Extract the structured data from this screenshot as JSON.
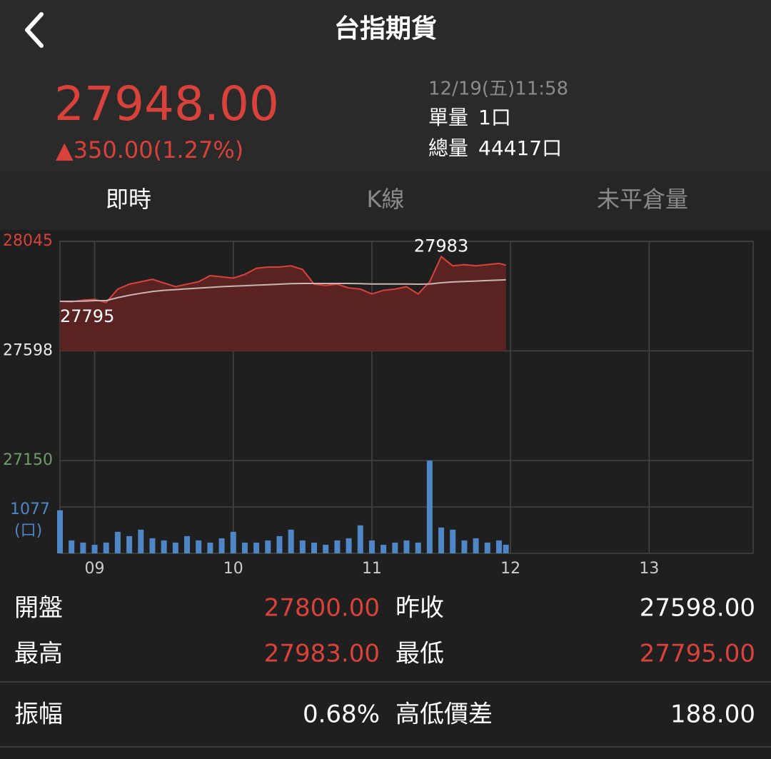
{
  "header": {
    "title": "台指期貨"
  },
  "quote": {
    "price": "27948.00",
    "change": "▲350.00(1.27%)",
    "time": "12/19(五)11:58",
    "volume_label": "單量",
    "volume": "1口",
    "total_label": "總量",
    "total": "44417口"
  },
  "tabs": [
    "即時",
    "K線",
    "未平倉量"
  ],
  "chart_data": [
    {
      "type": "area",
      "x": [
        525,
        530,
        535,
        540,
        545,
        550,
        555,
        560,
        565,
        570,
        575,
        580,
        585,
        590,
        595,
        600,
        605,
        610,
        615,
        620,
        625,
        630,
        635,
        640,
        645,
        650,
        655,
        660,
        665,
        670,
        675,
        680,
        685,
        690,
        695,
        700,
        705,
        710,
        715,
        718
      ],
      "series": [
        {
          "color": "#d9413b",
          "values": [
            27800,
            27798,
            27805,
            27808,
            27795,
            27850,
            27870,
            27880,
            27890,
            27875,
            27860,
            27870,
            27880,
            27905,
            27900,
            27895,
            27910,
            27935,
            27940,
            27940,
            27945,
            27930,
            27870,
            27865,
            27870,
            27855,
            27850,
            27830,
            27845,
            27850,
            27860,
            27830,
            27880,
            27983,
            27945,
            27950,
            27945,
            27950,
            27955,
            27948
          ]
        },
        {
          "color": "#c9b4b4",
          "values": [
            27800,
            27800,
            27801,
            27803,
            27803,
            27815,
            27825,
            27833,
            27840,
            27845,
            27848,
            27851,
            27854,
            27857,
            27860,
            27862,
            27864,
            27866,
            27868,
            27870,
            27872,
            27873,
            27873,
            27873,
            27873,
            27873,
            27872,
            27871,
            27871,
            27871,
            27871,
            27870,
            27871,
            27876,
            27879,
            27881,
            27883,
            27885,
            27887,
            27888
          ]
        }
      ],
      "high": 27983,
      "low": 27795,
      "baseline": 27598,
      "xlim": [
        525,
        825
      ],
      "xticks": [
        {
          "value": 540,
          "label": "09"
        },
        {
          "value": 600,
          "label": "10"
        },
        {
          "value": 660,
          "label": "11"
        },
        {
          "value": 720,
          "label": "12"
        },
        {
          "value": 780,
          "label": "13"
        }
      ],
      "ylim": [
        27150,
        28045
      ],
      "yticks": [
        27150,
        27598,
        28045
      ],
      "ytick_colors": [
        "#6f9a6a",
        "#e8e8e8",
        "#d9413b"
      ],
      "grid": true
    },
    {
      "type": "bar",
      "color": "#4f86c6",
      "unit": "(口)",
      "x": [
        525,
        530,
        535,
        540,
        545,
        550,
        555,
        560,
        565,
        570,
        575,
        580,
        585,
        590,
        595,
        600,
        605,
        610,
        615,
        620,
        625,
        630,
        635,
        640,
        645,
        650,
        655,
        660,
        665,
        670,
        675,
        680,
        685,
        690,
        695,
        700,
        705,
        710,
        715,
        718
      ],
      "values": [
        1000,
        300,
        250,
        200,
        250,
        500,
        400,
        550,
        350,
        300,
        250,
        400,
        300,
        250,
        350,
        500,
        250,
        250,
        300,
        400,
        550,
        300,
        250,
        200,
        300,
        350,
        650,
        300,
        200,
        250,
        300,
        250,
        2154,
        600,
        550,
        300,
        350,
        250,
        300,
        200
      ],
      "ylim": [
        0,
        2154
      ],
      "yticks": [
        1077
      ]
    }
  ],
  "stats": {
    "rows": [
      [
        {
          "label": "開盤",
          "value": "27800.00"
        },
        {
          "label": "昨收",
          "value": "27598.00"
        }
      ],
      [
        {
          "label": "最高",
          "value": "27983.00"
        },
        {
          "label": "最低",
          "value": "27795.00"
        }
      ],
      [
        {
          "label": "振幅",
          "value": "0.68%"
        },
        {
          "label": "高低價差",
          "value": "188.00"
        }
      ]
    ]
  }
}
